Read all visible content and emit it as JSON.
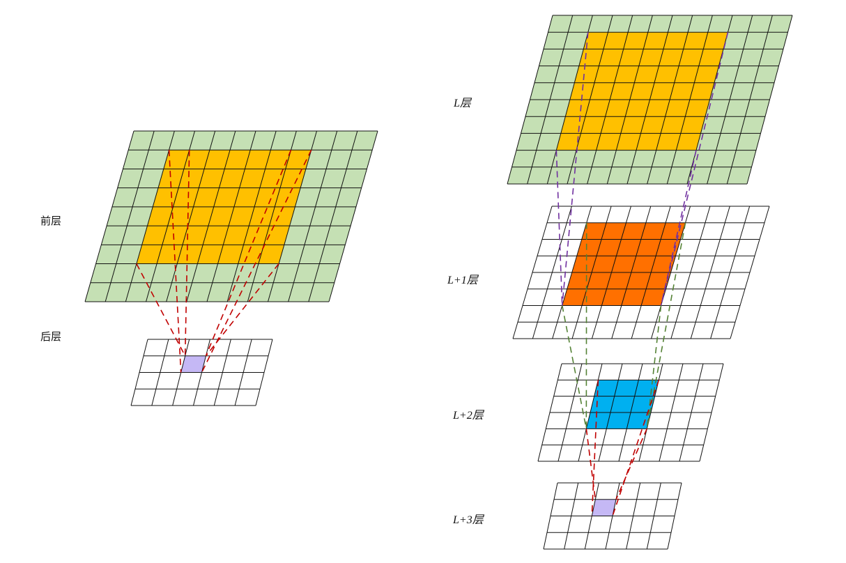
{
  "labels": {
    "front_layer": "前层",
    "back_layer": "后层",
    "layer_L": "L层",
    "layer_L1": "L+1层",
    "layer_L2": "L+2层",
    "layer_L3": "L+3层"
  },
  "colors": {
    "grid_green": "#c5e0b4",
    "grid_white": "#ffffff",
    "receptive_yellow": "#ffc000",
    "receptive_orange": "#ff7000",
    "receptive_blue": "#00b0f0",
    "target_purple": "#c5b8f5",
    "line": "#111111",
    "dash_red": "#c00000",
    "dash_purple": "#7030a0",
    "dash_green": "#548235"
  }
}
